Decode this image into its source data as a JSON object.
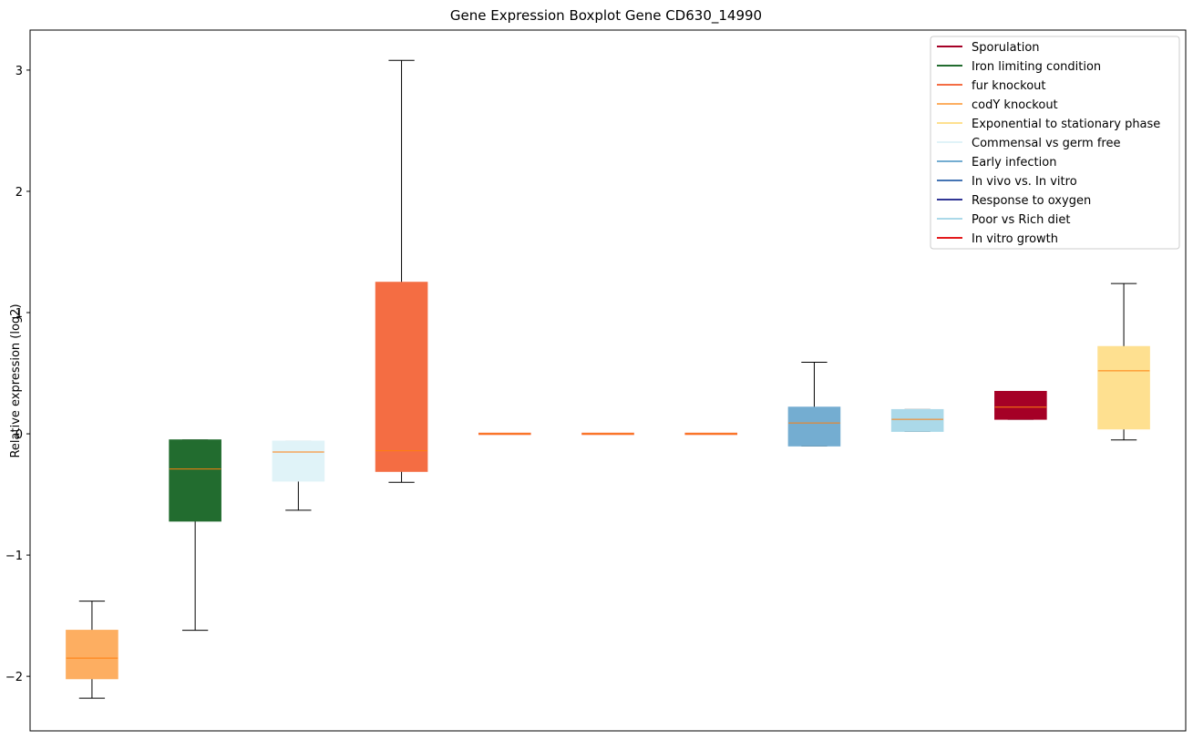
{
  "chart_data": {
    "type": "boxplot",
    "title": "Gene Expression Boxplot Gene CD630_14990",
    "xlabel": "",
    "ylabel": "Relative expression (log2)",
    "ylim": [
      -2.45,
      3.33
    ],
    "yticks": [
      -2,
      -1,
      0,
      1,
      2,
      3
    ],
    "ytick_labels": [
      "−2",
      "−1",
      "0",
      "1",
      "2",
      "3"
    ],
    "median_color": "#ff7f0e",
    "legend_position": "top-right",
    "boxes": [
      {
        "color": "#fdae61",
        "whisker_low": -2.18,
        "q1": -2.02,
        "median": -1.85,
        "q3": -1.62,
        "whisker_high": -1.38
      },
      {
        "color": "#226c2f",
        "whisker_low": -1.62,
        "q1": -0.72,
        "median": -0.29,
        "q3": -0.05,
        "whisker_high": -0.05
      },
      {
        "color": "#e0f3f8",
        "whisker_low": -0.63,
        "q1": -0.39,
        "median": -0.15,
        "q3": -0.06,
        "whisker_high": -0.06
      },
      {
        "color": "#f46d43",
        "whisker_low": -0.4,
        "q1": -0.31,
        "median": -0.14,
        "q3": 1.25,
        "whisker_high": 3.08
      },
      {
        "color": "#f46d43",
        "whisker_low": 0.0,
        "q1": 0.0,
        "median": 0.0,
        "q3": 0.0,
        "whisker_high": 0.0
      },
      {
        "color": "#f46d43",
        "whisker_low": 0.0,
        "q1": 0.0,
        "median": 0.0,
        "q3": 0.0,
        "whisker_high": 0.0
      },
      {
        "color": "#f46d43",
        "whisker_low": 0.0,
        "q1": 0.0,
        "median": 0.0,
        "q3": 0.0,
        "whisker_high": 0.0
      },
      {
        "color": "#74add1",
        "whisker_low": -0.1,
        "q1": -0.1,
        "median": 0.09,
        "q3": 0.22,
        "whisker_high": 0.59
      },
      {
        "color": "#abd9e9",
        "whisker_low": 0.02,
        "q1": 0.02,
        "median": 0.12,
        "q3": 0.2,
        "whisker_high": 0.2
      },
      {
        "color": "#a50026",
        "whisker_low": 0.12,
        "q1": 0.12,
        "median": 0.22,
        "q3": 0.35,
        "whisker_high": 0.35
      },
      {
        "color": "#fee090",
        "whisker_low": -0.05,
        "q1": 0.04,
        "median": 0.52,
        "q3": 0.72,
        "whisker_high": 1.24
      }
    ],
    "legend": [
      {
        "label": "Sporulation",
        "color": "#a50026"
      },
      {
        "label": "Iron limiting condition",
        "color": "#226c2f"
      },
      {
        "label": "fur knockout",
        "color": "#f46d43"
      },
      {
        "label": "codY knockout",
        "color": "#fdae61"
      },
      {
        "label": "Exponential to stationary phase",
        "color": "#fee090"
      },
      {
        "label": "Commensal vs germ free",
        "color": "#e0f3f8"
      },
      {
        "label": "Early infection",
        "color": "#74add1"
      },
      {
        "label": "In vivo vs. In vitro",
        "color": "#4575b4"
      },
      {
        "label": "Response to oxygen",
        "color": "#313695"
      },
      {
        "label": "Poor vs Rich diet",
        "color": "#abd9e9"
      },
      {
        "label": "In vitro growth",
        "color": "#e31a1c"
      }
    ]
  }
}
